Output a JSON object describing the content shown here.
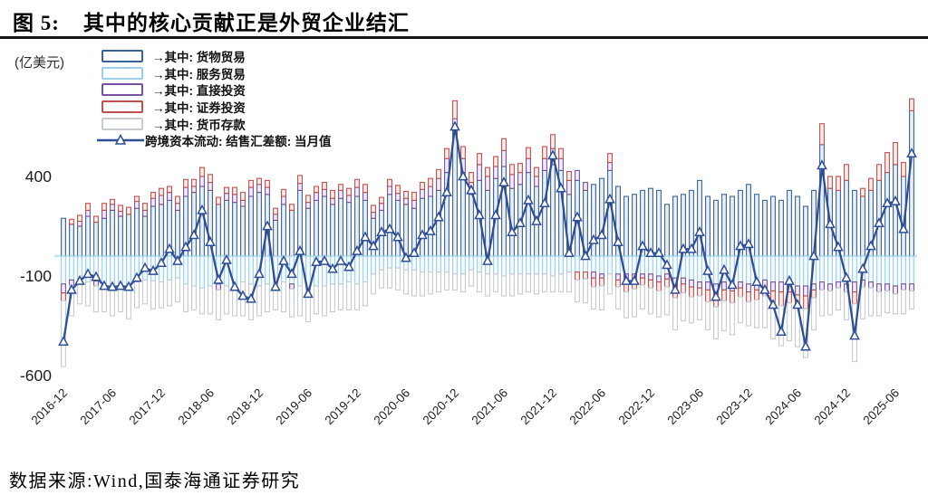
{
  "header": {
    "figure_label": "图 5:",
    "title": "其中的核心贡献正是外贸企业结汇"
  },
  "footer": {
    "source": "数据来源:Wind,国泰海通证券研究"
  },
  "chart_data": {
    "type": "stacked-bar+line",
    "title": "其中的核心贡献正是外贸企业结汇",
    "unit_label": "(亿美元)",
    "ylabel": "亿美元",
    "ylim": [
      -650,
      850
    ],
    "y_ticks": [
      400,
      -100,
      -600
    ],
    "grid": "off",
    "legend_position": "top-left",
    "zero_line_color": "#BFE4F5",
    "x_tick_labels": [
      "2016-12",
      "2017-06",
      "2017-12",
      "2018-06",
      "2018-12",
      "2019-06",
      "2019-12",
      "2020-06",
      "2020-12",
      "2021-06",
      "2021-12",
      "2022-06",
      "2022-12",
      "2023-06",
      "2023-12",
      "2024-06",
      "2024-12",
      "2025-06"
    ],
    "categories": [
      "2016-12",
      "2017-01",
      "2017-02",
      "2017-03",
      "2017-04",
      "2017-05",
      "2017-06",
      "2017-07",
      "2017-08",
      "2017-09",
      "2017-10",
      "2017-11",
      "2017-12",
      "2018-01",
      "2018-02",
      "2018-03",
      "2018-04",
      "2018-05",
      "2018-06",
      "2018-07",
      "2018-08",
      "2018-09",
      "2018-10",
      "2018-11",
      "2018-12",
      "2019-01",
      "2019-02",
      "2019-03",
      "2019-04",
      "2019-05",
      "2019-06",
      "2019-07",
      "2019-08",
      "2019-09",
      "2019-10",
      "2019-11",
      "2019-12",
      "2020-01",
      "2020-02",
      "2020-03",
      "2020-04",
      "2020-05",
      "2020-06",
      "2020-07",
      "2020-08",
      "2020-09",
      "2020-10",
      "2020-11",
      "2020-12",
      "2021-01",
      "2021-02",
      "2021-03",
      "2021-04",
      "2021-05",
      "2021-06",
      "2021-07",
      "2021-08",
      "2021-09",
      "2021-10",
      "2021-11",
      "2021-12",
      "2022-01",
      "2022-02",
      "2022-03",
      "2022-04",
      "2022-05",
      "2022-06",
      "2022-07",
      "2022-08",
      "2022-09",
      "2022-10",
      "2022-11",
      "2022-12",
      "2023-01",
      "2023-02",
      "2023-03",
      "2023-04",
      "2023-05",
      "2023-06",
      "2023-07",
      "2023-08",
      "2023-09",
      "2023-10",
      "2023-11",
      "2023-12",
      "2024-01",
      "2024-02",
      "2024-03",
      "2024-04",
      "2024-05",
      "2024-06",
      "2024-07",
      "2024-08",
      "2024-09",
      "2024-10",
      "2024-11",
      "2024-12",
      "2025-01",
      "2025-02",
      "2025-03",
      "2025-04",
      "2025-05",
      "2025-06",
      "2025-07",
      "2025-08"
    ],
    "series": [
      {
        "name": "→其中: 货物贸易",
        "type": "bar",
        "color": "#3B6397",
        "fill": "#E9EFF7",
        "values": [
          190,
          160,
          150,
          200,
          170,
          190,
          230,
          200,
          210,
          240,
          200,
          250,
          260,
          280,
          230,
          300,
          320,
          350,
          330,
          260,
          280,
          270,
          250,
          300,
          320,
          310,
          180,
          260,
          230,
          330,
          240,
          280,
          300,
          260,
          290,
          270,
          300,
          280,
          190,
          230,
          310,
          280,
          260,
          240,
          290,
          300,
          330,
          420,
          630,
          420,
          310,
          380,
          330,
          390,
          450,
          340,
          360,
          420,
          350,
          430,
          460,
          430,
          310,
          380,
          330,
          360,
          390,
          430,
          350,
          300,
          310,
          330,
          340,
          330,
          260,
          300,
          310,
          330,
          380,
          300,
          280,
          310,
          300,
          330,
          360,
          310,
          280,
          300,
          280,
          330,
          300,
          250,
          330,
          560,
          340,
          330,
          380,
          330,
          300,
          330,
          380,
          420,
          460,
          400,
          730
        ]
      },
      {
        "name": "→其中: 服务贸易",
        "type": "bar",
        "color": "#9CD0EA",
        "fill": "#F2FAFD",
        "values": [
          -140,
          -120,
          -110,
          -130,
          -125,
          -140,
          -150,
          -140,
          -145,
          -130,
          -120,
          -125,
          -130,
          -120,
          -110,
          -140,
          -150,
          -160,
          -150,
          -140,
          -150,
          -140,
          -130,
          -140,
          -150,
          -140,
          -110,
          -130,
          -140,
          -150,
          -160,
          -150,
          -150,
          -140,
          -140,
          -130,
          -140,
          -130,
          -90,
          -70,
          -60,
          -60,
          -70,
          -70,
          -80,
          -80,
          -80,
          -80,
          -90,
          -90,
          -70,
          -80,
          -90,
          -90,
          -100,
          -90,
          -90,
          -90,
          -90,
          -90,
          -100,
          -90,
          -80,
          -80,
          -80,
          -80,
          -90,
          -90,
          -90,
          -90,
          -90,
          -90,
          -90,
          -100,
          -90,
          -110,
          -110,
          -120,
          -130,
          -130,
          -140,
          -130,
          -140,
          -130,
          -140,
          -130,
          -120,
          -130,
          -130,
          -140,
          -150,
          -150,
          -140,
          -130,
          -140,
          -130,
          -140,
          -130,
          -120,
          -130,
          -140,
          -140,
          -150,
          -140,
          -140
        ]
      },
      {
        "name": "→其中: 直接投资",
        "type": "bar",
        "color": "#7552A3",
        "fill": "#F2ECF8",
        "values": [
          -45,
          -30,
          25,
          30,
          -25,
          40,
          30,
          25,
          -20,
          35,
          30,
          40,
          45,
          40,
          35,
          45,
          30,
          50,
          40,
          -30,
          35,
          40,
          30,
          45,
          40,
          35,
          30,
          40,
          -25,
          35,
          30,
          40,
          35,
          30,
          40,
          35,
          45,
          40,
          30,
          35,
          40,
          35,
          30,
          40,
          45,
          50,
          60,
          70,
          60,
          70,
          60,
          80,
          70,
          60,
          80,
          70,
          60,
          70,
          50,
          60,
          80,
          60,
          70,
          50,
          40,
          -30,
          -20,
          40,
          -30,
          -40,
          -30,
          -20,
          -30,
          -30,
          -25,
          -40,
          -30,
          -35,
          -30,
          -40,
          -45,
          -40,
          -35,
          -30,
          -40,
          -40,
          -35,
          -45,
          -50,
          -40,
          -45,
          -50,
          -30,
          -40,
          -35,
          -30,
          -40,
          -50,
          -35,
          -30,
          -40,
          -35,
          -40,
          -30,
          -35
        ]
      },
      {
        "name": "→其中: 证券投资",
        "type": "bar",
        "color": "#C0504D",
        "fill": "#F9ECEB",
        "values": [
          -40,
          25,
          30,
          35,
          30,
          35,
          25,
          30,
          35,
          25,
          35,
          30,
          35,
          30,
          35,
          40,
          35,
          45,
          40,
          35,
          30,
          35,
          40,
          35,
          30,
          35,
          30,
          35,
          30,
          40,
          35,
          30,
          35,
          40,
          30,
          35,
          40,
          40,
          35,
          30,
          35,
          40,
          35,
          40,
          35,
          40,
          45,
          50,
          90,
          60,
          50,
          55,
          45,
          50,
          60,
          50,
          45,
          55,
          45,
          60,
          70,
          50,
          45,
          -40,
          -35,
          -45,
          -40,
          45,
          -35,
          -50,
          -45,
          -35,
          -40,
          -45,
          -40,
          -60,
          -45,
          -50,
          -40,
          -60,
          -70,
          -55,
          -60,
          -45,
          -50,
          -50,
          -45,
          -60,
          -70,
          -55,
          -60,
          -65,
          -40,
          105,
          60,
          70,
          80,
          -60,
          40,
          60,
          80,
          100,
          110,
          70,
          60
        ]
      },
      {
        "name": "→其中: 货币存款",
        "type": "bar",
        "color": "#C6CBD1",
        "fill": "#FFFFFF",
        "values": [
          -330,
          -150,
          -130,
          -120,
          -130,
          -140,
          -150,
          -140,
          -150,
          -130,
          -120,
          -140,
          -130,
          -130,
          -120,
          -140,
          -120,
          -130,
          -140,
          -150,
          -140,
          -160,
          -170,
          -180,
          -150,
          -140,
          -160,
          -150,
          -140,
          -150,
          -170,
          -140,
          -150,
          -140,
          -130,
          -140,
          -130,
          -120,
          -100,
          -90,
          -100,
          -110,
          -120,
          -130,
          -120,
          -110,
          -100,
          -90,
          -80,
          -90,
          -80,
          -100,
          -110,
          -90,
          -100,
          -110,
          -100,
          -90,
          -100,
          -90,
          -80,
          -90,
          -100,
          -110,
          -120,
          -110,
          -120,
          -100,
          -110,
          -130,
          -140,
          -120,
          -130,
          -130,
          -140,
          -160,
          -140,
          -130,
          -120,
          -140,
          -160,
          -150,
          -160,
          -130,
          -120,
          -140,
          -160,
          -180,
          -200,
          -190,
          -200,
          -245,
          -160,
          -130,
          -120,
          -110,
          -140,
          -290,
          -160,
          -140,
          -120,
          -110,
          -100,
          -120,
          -90
        ]
      },
      {
        "name": "跨境资本流动: 结售汇差额: 当月值",
        "type": "line",
        "color": "#2E4F96",
        "values": [
          -430,
          -170,
          -125,
          -90,
          -105,
          -150,
          -155,
          -150,
          -155,
          -110,
          -60,
          -75,
          -35,
          35,
          -25,
          45,
          105,
          230,
          70,
          -120,
          -20,
          -155,
          -200,
          -215,
          -90,
          150,
          -155,
          -25,
          -90,
          25,
          -190,
          -30,
          -25,
          -65,
          -25,
          -55,
          25,
          95,
          50,
          120,
          135,
          95,
          -10,
          15,
          105,
          125,
          195,
          320,
          650,
          400,
          330,
          205,
          -25,
          205,
          370,
          120,
          165,
          280,
          175,
          265,
          505,
          340,
          15,
          195,
          0,
          80,
          105,
          285,
          70,
          -125,
          -125,
          50,
          15,
          15,
          -45,
          -170,
          35,
          35,
          120,
          -75,
          -205,
          -70,
          -145,
          50,
          60,
          -130,
          -170,
          -245,
          -380,
          -125,
          -245,
          -455,
          0,
          455,
          160,
          45,
          -110,
          -400,
          -65,
          50,
          165,
          265,
          275,
          135,
          515
        ]
      }
    ]
  }
}
